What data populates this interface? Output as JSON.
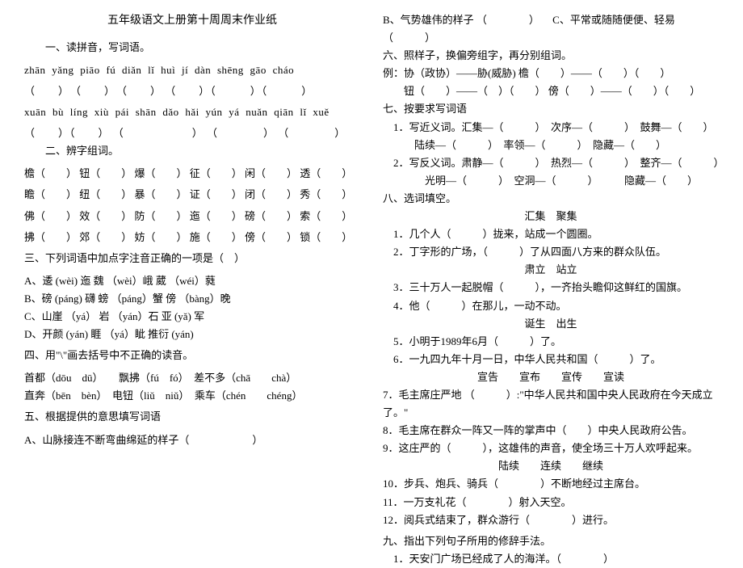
{
  "title": "五年级语文上册第十周周末作业纸",
  "left": {
    "s1_header": "一、读拼音，写词语。",
    "s1_pinyin1": "zhān yǎng   piāo fú    diǎn lǐ    huì jí   dàn   shēng    gāo cháo",
    "s1_paren1": "（　　）　（　　）　（　　） （　　）（　　　）（　　　）",
    "s1_pinyin2": "xuān bù  líng xiù   pái  shān  dǎo  hǎi   yún  yá  nuǎn    qiān  lǐ  xuě",
    "s1_paren2": "（　　）（　　） （　　　　　　） （　　　　）  （　　　　）",
    "s2_header": "二、辨字组词。",
    "s2_r1": "檐（　　） 钮（　　） 爆（　　） 征（　　）  闲（　　）  透（　　）",
    "s2_r2": "瞻（　　） 纽（　　） 暴（　　） 证（　　）  闭（　　）  秀（　　）",
    "s2_r3": "佛（　　） 效（　　） 防（　　） 迤（　　）  磅（　　）  索（　　）",
    "s2_r4": "拂（　　） 郊（　　） 妨（　　） 施（　　）  傍（　　）  锁（　　）",
    "s3_header": "三、下列词语中加点字注音正确的一项是（　）",
    "s3_a": "A、逶 (wèi) 迤      魏 （wèi）峨      葳 （wéi）蕤",
    "s3_b": "B、磅 (páng) 礴    螃 （páng）蟹    傍 （bàng）晚",
    "s3_c": "C、山崖 （yá）      岩 （yán）石      亚 (yǎ) 军",
    "s3_d": "D、开颜 (yán)      睚 （yá）眦        推衍 (yán)",
    "s4_header": "四、用\"\\\"画去括号中不正确的读音。",
    "s4_l1": "首都（dōu　dū）　　飘拂（fú　fó）　差不多（chā　　chà）",
    "s4_l2": "直奔（bēn　bèn）　电钮（liǔ　niǔ）　乘车（chén　　chéng）",
    "s5_header": "五、根据提供的意思填写词语",
    "s5_a": "A、山脉接连不断弯曲绵延的样子（　　　　　　）"
  },
  "right": {
    "r_b": "B、气势雄伟的样子 （　　　　） 　C、平常或随随便便、轻易（　　　）",
    "s6_header": "六、照样子，换偏旁组字，再分别组词。",
    "s6_ex1": "例：协（政协）——胁(威胁)          檐（　　）——（　　）（　　）",
    "s6_ex2": "　　钮（　　）——（　）（　　）        傍（　　）——（　　）（　　）",
    "s7_header": "七、按要求写词语",
    "s7_l1": "　1．写近义词。汇集—（　　　）　次序—（　　　）　鼓舞—（　　）",
    "s7_l2": "　　　陆续—（　　　）　率领—（　　　）　隐藏—（　　）",
    "s7_l3": "　2．写反义词。肃静—（　　　）　热烈—（　　　）　整齐—（　　　）",
    "s7_l4": "　　　　光明—（　　　）　空洞—（　　　）　　　隐藏—（　　）",
    "s8_header": "八、选词填空。",
    "s8_g1": "汇集　聚集",
    "s8_q1": "　1．几个人（　　　）拢来，站成一个圆圈。",
    "s8_q2": "　2．丁字形的广场，（　　　）了从四面八方来的群众队伍。",
    "s8_g2": "肃立　站立",
    "s8_q3": "　3．三十万人一起脱帽（　　　），一齐抬头瞻仰这鲜红的国旗。",
    "s8_q4": "　4．他（　　　）在那儿，一动不动。",
    "s8_g3": "诞生　出生",
    "s8_q5": "　5．小明于1989年6月（　　　）了。",
    "s8_q6": "　6．一九四九年十月一日，中华人民共和国（　　　）了。",
    "s8_g4": "宣告　　宣布　　宣传　　宣读",
    "s8_q7": "7．毛主席庄严地 （　　　）:\"中华人民共和国中央人民政府在今天成立了。\"",
    "s8_q8": "8．毛主席在群众一阵又一阵的掌声中（　　）中央人民政府公告。",
    "s8_q9": "9．这庄严的（　　　），这雄伟的声音，使全场三十万人欢呼起来。",
    "s8_g5": "陆续　　连续　　继续",
    "s8_q10": "10．步兵、炮兵、骑兵（　　　　）不断地经过主席台。",
    "s8_q11": "11．一万支礼花（　　　　）射入天空。",
    "s8_q12": "12．阅兵式结束了，群众游行（　　　　）进行。",
    "s9_header": "九、指出下列句子所用的修辞手法。",
    "s9_q1": "　1．天安门广场已经成了人的海洋。（　　　　）"
  }
}
